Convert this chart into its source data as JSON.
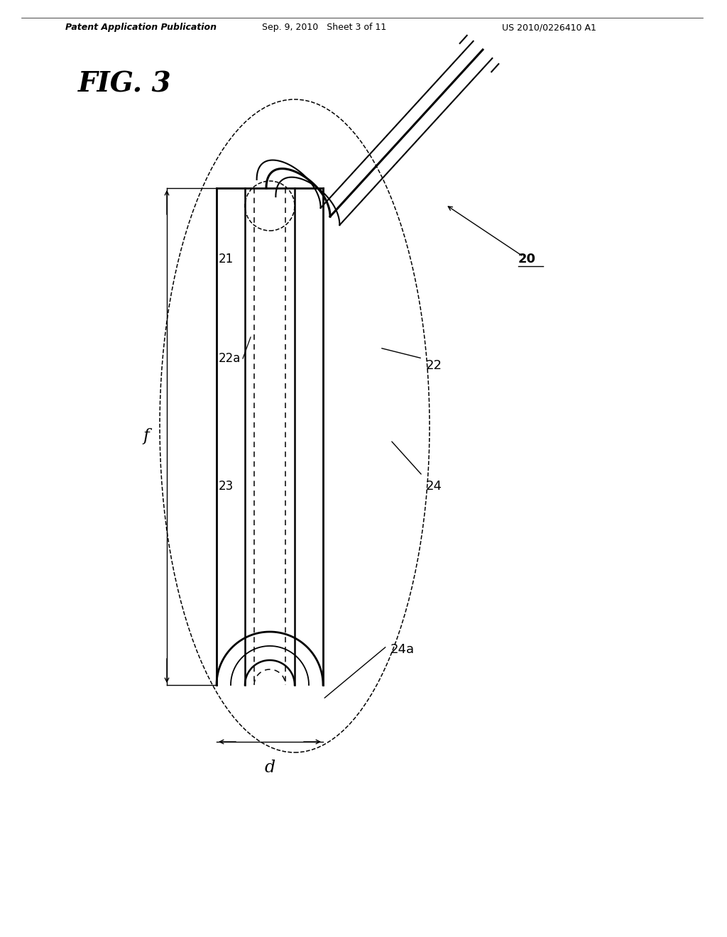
{
  "title": "FIG. 3",
  "header_left": "Patent Application Publication",
  "header_center": "Sep. 9, 2010   Sheet 3 of 11",
  "header_right": "US 2010/0226410 A1",
  "background_color": "#ffffff",
  "line_color": "#000000",
  "label_20": "20",
  "label_21": "21",
  "label_22": "22",
  "label_22a": "22a",
  "label_23": "23",
  "label_24": "24",
  "label_24a": "24a",
  "label_f": "f",
  "label_d": "d",
  "fig_width": 10.24,
  "fig_height": 13.2,
  "dpi": 100
}
